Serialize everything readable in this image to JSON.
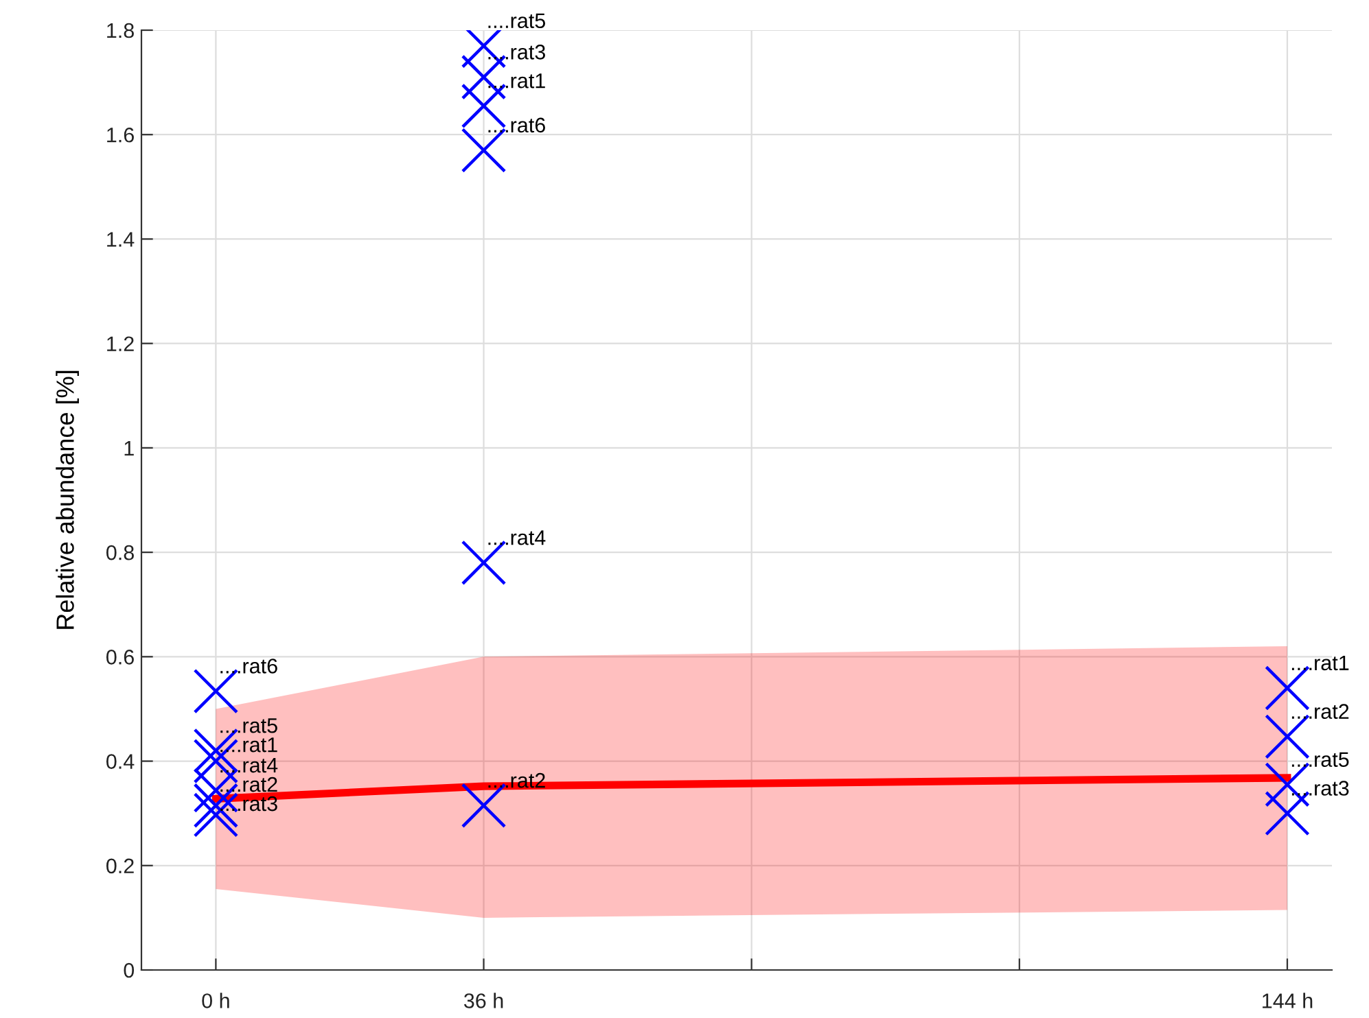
{
  "chart_data": {
    "type": "scatter",
    "ylabel": "Relative abundance [%]",
    "xlim": [
      -10,
      150
    ],
    "ylim": [
      0,
      1.8
    ],
    "xticks": [
      {
        "value": 0,
        "label": "0 h"
      },
      {
        "value": 36,
        "label": "36 h"
      },
      {
        "value": 72,
        "label": null
      },
      {
        "value": 108,
        "label": null
      },
      {
        "value": 144,
        "label": "144 h"
      }
    ],
    "yticks": [
      0,
      0.2,
      0.4,
      0.6,
      0.8,
      1,
      1.2,
      1.4,
      1.6,
      1.8
    ],
    "grid": true,
    "series": [
      {
        "type": "line",
        "color": "#ff0000",
        "x": [
          0,
          36,
          144
        ],
        "values": [
          0.328,
          0.352,
          0.368
        ],
        "lower": [
          0.155,
          0.1,
          0.115
        ],
        "upper": [
          0.5,
          0.6,
          0.62
        ],
        "marker": "none",
        "line_style": "solid"
      },
      {
        "type": "scatter",
        "color": "#0000ff",
        "marker": "cross",
        "x": [
          0,
          0,
          0,
          0,
          0,
          0,
          36,
          36,
          36,
          36,
          36,
          36,
          144,
          144,
          144,
          144
        ],
        "values": [
          0.534,
          0.42,
          0.4,
          0.344,
          0.315,
          0.297,
          1.77,
          1.71,
          1.655,
          1.57,
          0.78,
          0.315,
          0.54,
          0.447,
          0.355,
          0.3
        ]
      }
    ],
    "annotations": [
      {
        "text": "....rat6",
        "x": 0,
        "y": 0.534
      },
      {
        "text": "....rat5",
        "x": 0,
        "y": 0.42
      },
      {
        "text": "....rat1",
        "x": 0,
        "y": 0.4
      },
      {
        "text": "....rat4",
        "x": 0,
        "y": 0.344
      },
      {
        "text": "....rat2",
        "x": 0,
        "y": 0.315
      },
      {
        "text": "....rat3",
        "x": 0,
        "y": 0.297
      },
      {
        "text": "....rat5",
        "x": 36,
        "y": 1.77
      },
      {
        "text": "....rat3",
        "x": 36,
        "y": 1.71
      },
      {
        "text": "....rat1",
        "x": 36,
        "y": 1.655
      },
      {
        "text": "....rat6",
        "x": 36,
        "y": 1.57
      },
      {
        "text": "....rat4",
        "x": 36,
        "y": 0.78
      },
      {
        "text": "....rat2",
        "x": 36,
        "y": 0.315
      },
      {
        "text": "....rat1",
        "x": 144,
        "y": 0.54
      },
      {
        "text": "....rat2",
        "x": 144,
        "y": 0.447
      },
      {
        "text": "....rat5",
        "x": 144,
        "y": 0.355
      },
      {
        "text": "....rat3",
        "x": 144,
        "y": 0.3
      }
    ]
  }
}
